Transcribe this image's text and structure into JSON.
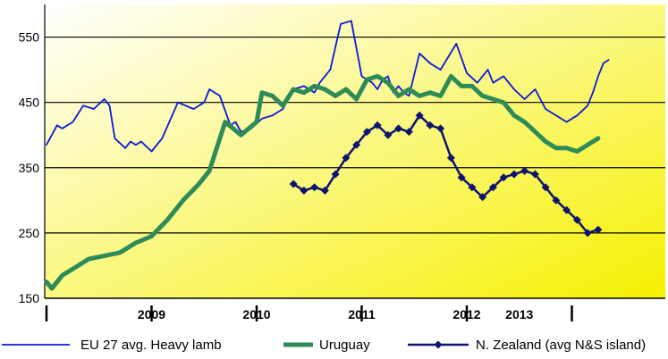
{
  "chart_data": {
    "type": "line",
    "ylim": [
      150,
      600
    ],
    "yticks": [
      150,
      250,
      350,
      450,
      550
    ],
    "xlim": [
      0,
      7
    ],
    "grid": true,
    "legend_position": "bottom",
    "x_categories": [
      "2009",
      "2010",
      "2011",
      "2012",
      "2013"
    ],
    "x_category_positions": [
      1,
      2,
      3,
      4,
      4.5
    ],
    "colors": {
      "eu": "#0b1ad6",
      "uy": "#2e8b57",
      "nz": "#0d1570",
      "bg_top": "#ffffff",
      "bg_bottom": "#f6f000"
    },
    "series": [
      {
        "name": "EU 27 avg. Heavy lamb",
        "key": "eu",
        "x": [
          0,
          0.05,
          0.1,
          0.15,
          0.25,
          0.35,
          0.45,
          0.55,
          0.6,
          0.65,
          0.75,
          0.8,
          0.85,
          0.9,
          1.0,
          1.1,
          1.25,
          1.4,
          1.5,
          1.55,
          1.65,
          1.75,
          1.8,
          1.85,
          1.95,
          2.05,
          2.15,
          2.25,
          2.35,
          2.45,
          2.55,
          2.6,
          2.7,
          2.8,
          2.9,
          3.0,
          3.1,
          3.15,
          3.2,
          3.25,
          3.3,
          3.35,
          3.4,
          3.45,
          3.55,
          3.65,
          3.75,
          3.9,
          4.0,
          4.1,
          4.2,
          4.25,
          4.35,
          4.45,
          4.55,
          4.65,
          4.75,
          4.85,
          4.95,
          5.05,
          5.15,
          5.2,
          5.25,
          5.3,
          5.35
        ],
        "y": [
          385,
          400,
          415,
          410,
          420,
          445,
          440,
          455,
          445,
          395,
          380,
          390,
          385,
          390,
          375,
          395,
          450,
          440,
          450,
          470,
          460,
          415,
          420,
          405,
          410,
          425,
          430,
          440,
          470,
          475,
          465,
          480,
          500,
          570,
          575,
          490,
          480,
          470,
          485,
          490,
          465,
          475,
          465,
          460,
          525,
          510,
          500,
          540,
          495,
          480,
          500,
          480,
          490,
          470,
          455,
          470,
          440,
          430,
          420,
          430,
          445,
          465,
          490,
          510,
          515
        ]
      },
      {
        "name": "Uruguay",
        "key": "uy",
        "x": [
          0,
          0.05,
          0.15,
          0.25,
          0.4,
          0.55,
          0.7,
          0.85,
          1.0,
          1.15,
          1.3,
          1.45,
          1.55,
          1.7,
          1.85,
          2.0,
          2.05,
          2.15,
          2.25,
          2.35,
          2.45,
          2.55,
          2.65,
          2.75,
          2.85,
          2.95,
          3.05,
          3.15,
          3.25,
          3.35,
          3.45,
          3.55,
          3.65,
          3.75,
          3.85,
          3.95,
          4.05,
          4.15,
          4.25,
          4.35,
          4.45,
          4.55,
          4.65,
          4.75,
          4.85,
          4.95,
          5.05,
          5.15,
          5.25
        ],
        "y": [
          175,
          165,
          185,
          195,
          210,
          215,
          220,
          235,
          245,
          270,
          300,
          325,
          345,
          420,
          400,
          420,
          465,
          460,
          445,
          470,
          465,
          475,
          470,
          460,
          470,
          455,
          485,
          490,
          480,
          460,
          470,
          460,
          465,
          460,
          490,
          475,
          475,
          460,
          455,
          450,
          430,
          420,
          405,
          390,
          380,
          380,
          375,
          385,
          395
        ]
      },
      {
        "name": "N. Zealand (avg N&S island)",
        "key": "nz",
        "x": [
          2.35,
          2.45,
          2.55,
          2.65,
          2.75,
          2.85,
          2.95,
          3.05,
          3.15,
          3.25,
          3.35,
          3.45,
          3.55,
          3.65,
          3.75,
          3.85,
          3.95,
          4.05,
          4.15,
          4.25,
          4.35,
          4.45,
          4.55,
          4.65,
          4.75,
          4.85,
          4.95,
          5.05,
          5.15,
          5.25
        ],
        "y": [
          325,
          315,
          320,
          315,
          340,
          365,
          385,
          405,
          415,
          400,
          410,
          405,
          430,
          415,
          410,
          365,
          335,
          320,
          305,
          320,
          335,
          340,
          345,
          340,
          320,
          300,
          285,
          270,
          250,
          255
        ]
      }
    ]
  }
}
